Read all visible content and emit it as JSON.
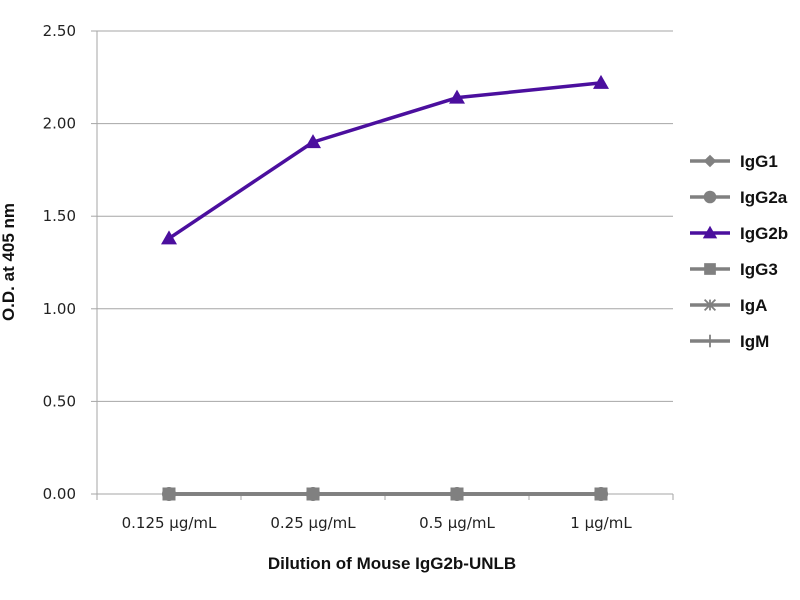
{
  "chart_data": {
    "type": "line",
    "categories": [
      "0.125 µg/mL",
      "0.25 µg/mL",
      "0.5 µg/mL",
      "1 µg/mL"
    ],
    "ylim": [
      0,
      2.5
    ],
    "yticks": [
      "0.00",
      "0.50",
      "1.00",
      "1.50",
      "2.00",
      "2.50"
    ],
    "ylabel": "O.D. at 405 nm",
    "xlabel": "Dilution of Mouse IgG2b-UNLB",
    "grid": "horizontal",
    "legend_position": "right",
    "series": [
      {
        "name": "IgG1",
        "values": [
          0,
          0,
          0,
          0
        ],
        "marker": "diamond",
        "color": "#808080"
      },
      {
        "name": "IgG2a",
        "values": [
          0,
          0,
          0,
          0
        ],
        "marker": "circle",
        "color": "#808080"
      },
      {
        "name": "IgG2b",
        "values": [
          1.38,
          1.9,
          2.14,
          2.22
        ],
        "marker": "triangle",
        "color": "#4b0f9e"
      },
      {
        "name": "IgG3",
        "values": [
          0,
          0,
          0,
          0
        ],
        "marker": "square",
        "color": "#808080"
      },
      {
        "name": "IgA",
        "values": [
          0,
          0,
          0,
          0
        ],
        "marker": "asterisk",
        "color": "#808080"
      },
      {
        "name": "IgM",
        "values": [
          0,
          0,
          0,
          0
        ],
        "marker": "plus",
        "color": "#808080"
      }
    ]
  }
}
